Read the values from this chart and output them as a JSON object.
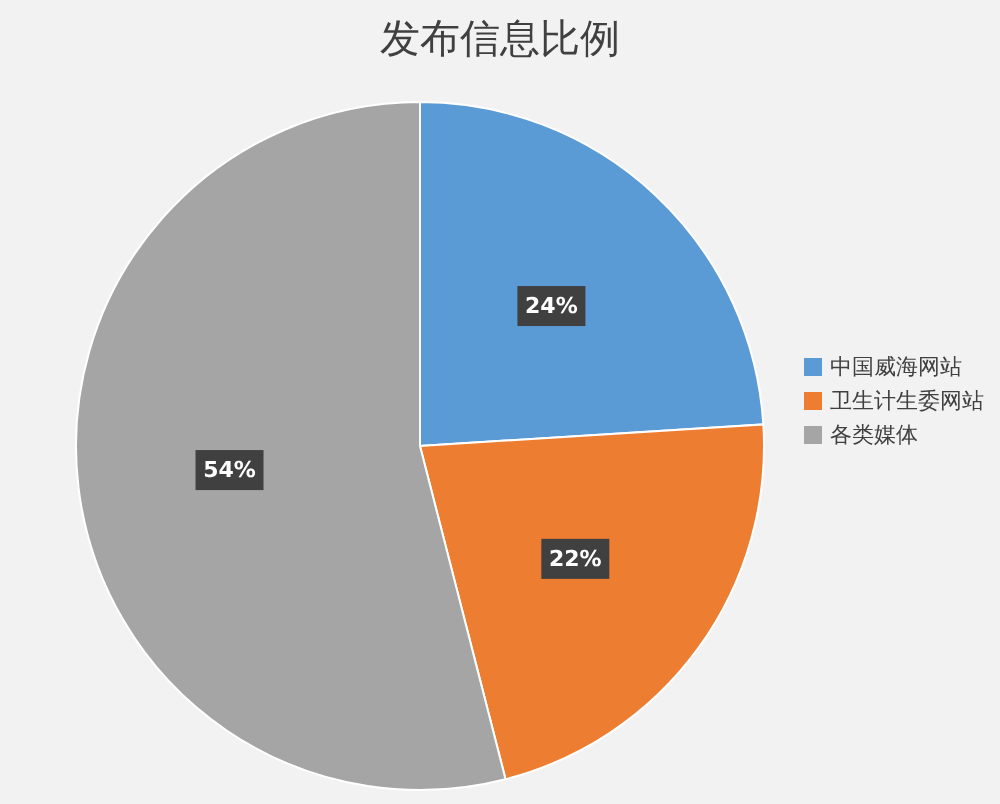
{
  "chart_data": {
    "type": "pie",
    "title": "发布信息比例",
    "categories": [
      "中国威海网站",
      "卫生计生委网站",
      "各类媒体"
    ],
    "values": [
      24,
      22,
      54
    ],
    "colors": [
      "#5b9bd5",
      "#ed7d31",
      "#a5a5a5"
    ],
    "value_labels": [
      "24%",
      "22%",
      "54%"
    ],
    "legend": "right"
  }
}
